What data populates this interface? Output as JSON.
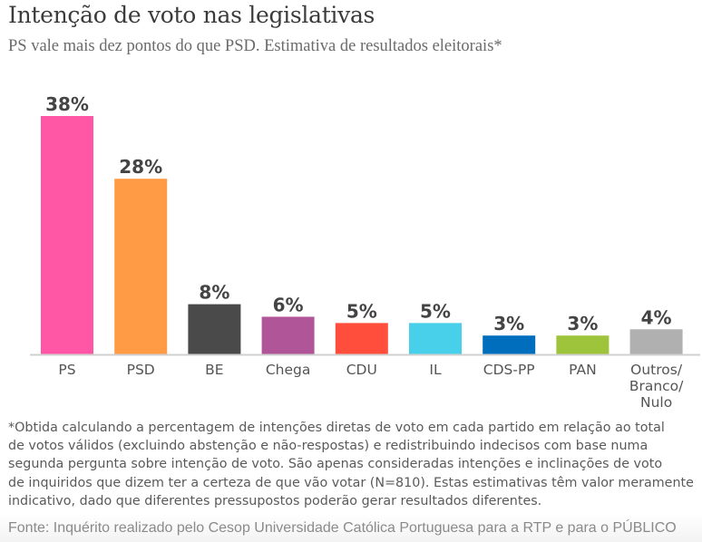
{
  "header": {
    "title": "Intenção de voto nas legislativas",
    "subtitle": "PS vale mais dez pontos do que PSD. Estimativa de resultados eleitorais*"
  },
  "chart_data": {
    "type": "bar",
    "title": "Intenção de voto nas legislativas",
    "subtitle": "PS vale mais dez pontos do que PSD. Estimativa de resultados eleitorais*",
    "xlabel": "",
    "ylabel": "",
    "unit": "%",
    "ylim": [
      0,
      38
    ],
    "grid": false,
    "legend": "none",
    "categories": [
      "PS",
      "PSD",
      "BE",
      "Chega",
      "CDU",
      "IL",
      "CDS-PP",
      "PAN",
      "Outros/Branco/Nulo"
    ],
    "category_lines": [
      [
        "PS"
      ],
      [
        "PSD"
      ],
      [
        "BE"
      ],
      [
        "Chega"
      ],
      [
        "CDU"
      ],
      [
        "IL"
      ],
      [
        "CDS-PP"
      ],
      [
        "PAN"
      ],
      [
        "Outros/",
        "Branco/",
        "Nulo"
      ]
    ],
    "values": [
      38,
      28,
      8,
      6,
      5,
      5,
      3,
      3,
      4
    ],
    "data_labels": [
      "38%",
      "28%",
      "8%",
      "6%",
      "5%",
      "5%",
      "3%",
      "3%",
      "4%"
    ],
    "colors": [
      "#ff57a6",
      "#ff9a45",
      "#4a4a4a",
      "#b05598",
      "#ff4e3c",
      "#48d0ea",
      "#006dbd",
      "#9dc43a",
      "#b0b0b0"
    ]
  },
  "footnote": {
    "lines": [
      "*Obtida calculando a percentagem de intenções diretas de voto em cada partido em relação ao total",
      "de votos válidos (excluindo abstenção e não-respostas) e redistribuindo indecisos com base numa",
      "segunda pergunta sobre intenção de voto. São apenas consideradas intenções e inclinações de voto",
      "de inquiridos que dizem ter a certeza de que vão votar (N=810). Estas estimativas têm valor meramente",
      "indicativo, dado que diferentes pressupostos poderão gerar resultados diferentes."
    ]
  },
  "source": "Fonte: Inquérito realizado pelo Cesop Universidade Católica Portuguesa para a RTP e para o PÚBLICO"
}
